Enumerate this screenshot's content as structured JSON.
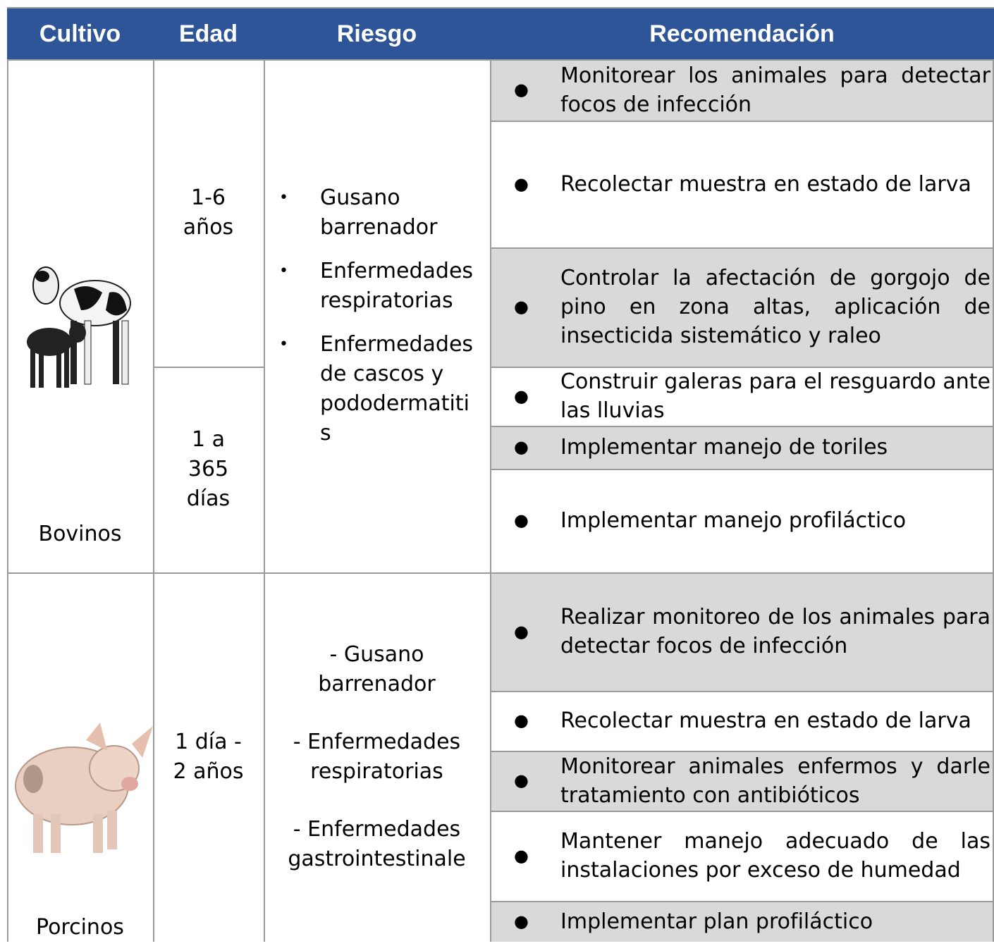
{
  "header": {
    "columns": [
      "Cultivo",
      "Edad",
      "Riesgo",
      "Recomendación"
    ]
  },
  "groups": [
    {
      "crop": "Bovinos",
      "ages": [
        "1-6 años",
        "1 a 365 días"
      ],
      "risks": [
        "Gusano barrenador",
        "Enfermedades respiratorias",
        "Enfermedades de cascos y pododermatitis"
      ],
      "recommendations": [
        "Monitorear los animales para detectar focos de infección",
        "Recolectar muestra en estado de larva",
        "Controlar la afectación de gorgojo de pino en zona altas, aplicación de insecticida sistemático y raleo",
        "Construir galeras para el resguardo  ante las lluvias",
        "Implementar manejo de toriles",
        "Implementar manejo profiláctico"
      ]
    },
    {
      "crop": "Porcinos",
      "ages": [
        "1 día - 2 años"
      ],
      "risks": [
        "- Gusano barrenador",
        "- Enfermedades respiratorias",
        "- Enfermedades gastrointestinale"
      ],
      "recommendations": [
        "Realizar monitoreo de los animales para detectar focos de infección",
        "Recolectar muestra en estado de larva",
        "Monitorear animales enfermos y darle tratamiento con antibióticos",
        "Mantener manejo adecuado de las instalaciones por exceso de humedad",
        "Implementar plan profiláctico"
      ]
    }
  ]
}
